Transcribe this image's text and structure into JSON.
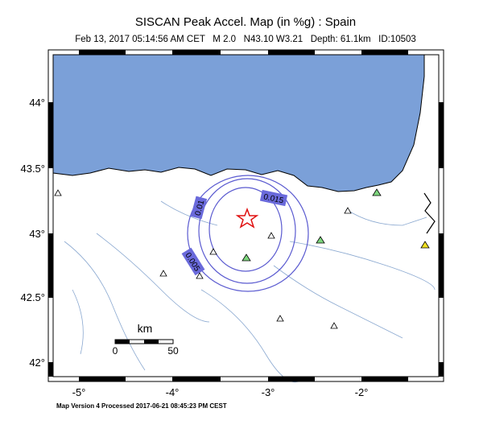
{
  "header": {
    "title": "SISCAN Peak Accel. Map (in %g) : Spain",
    "subtitle": "Feb 13, 2017 05:14:56 AM CET   M 2.0   N43.10 W3.21   Depth: 61.1km   ID:10503"
  },
  "axes": {
    "latitude_labels": [
      "44°",
      "43.5°",
      "43°",
      "42.5°",
      "42°"
    ],
    "longitude_labels": [
      "-5°",
      "-4°",
      "-3°",
      "-2°"
    ]
  },
  "contours": {
    "labels": [
      "0.015",
      "0.01",
      "0.005"
    ]
  },
  "scale_bar": {
    "unit": "km",
    "labels": [
      "0",
      "50"
    ]
  },
  "footer": "Map Version 4 Processed 2017-06-21 08:45:23 PM CEST"
}
